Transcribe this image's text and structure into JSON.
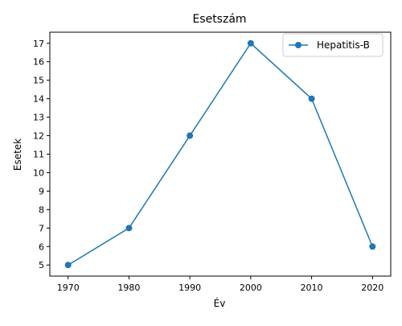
{
  "chart_data": {
    "type": "line",
    "title": "Esetszám",
    "xlabel": "Év",
    "ylabel": "Esetek",
    "x": [
      1970,
      1980,
      1990,
      2000,
      2010,
      2020
    ],
    "series": [
      {
        "name": "Hepatitis-B",
        "values": [
          5,
          7,
          12,
          17,
          14,
          6
        ],
        "color": "#1f77b4",
        "marker": "circle"
      }
    ],
    "xticks": [
      "1970",
      "1980",
      "1990",
      "2000",
      "2010",
      "2020"
    ],
    "yticks": [
      "5",
      "6",
      "7",
      "8",
      "9",
      "10",
      "11",
      "12",
      "13",
      "14",
      "15",
      "16",
      "17"
    ],
    "xlim": [
      1967,
      2023
    ],
    "ylim": [
      4.4,
      17.6
    ],
    "grid": false,
    "legend_position": "top-right"
  }
}
